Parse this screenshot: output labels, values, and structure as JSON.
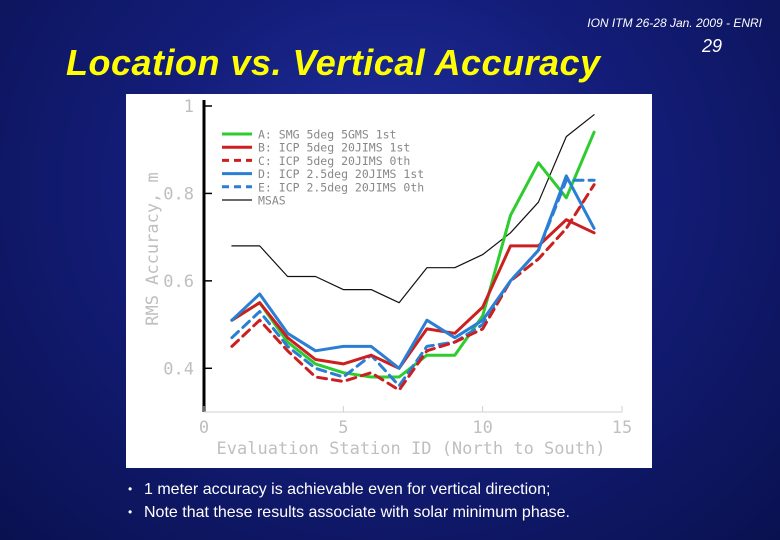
{
  "header": {
    "conference": "ION ITM 26-28 Jan. 2009 - ENRI",
    "page_number": "29"
  },
  "slide": {
    "title": "Location vs. Vertical Accuracy"
  },
  "bullets": [
    "1 meter accuracy is achievable even for vertical direction;",
    "Note that these results associate with solar minimum phase."
  ],
  "colors": {
    "background": "#131d78",
    "title": "#ffff00",
    "green": "#2ecc2e",
    "red": "#cc2020",
    "blue": "#2a7fd4",
    "black": "#111111"
  },
  "chart_data": {
    "type": "line",
    "title": "",
    "xlabel": "Evaluation Station ID (North to South)",
    "ylabel": "RMS Accuracy, m",
    "xlim": [
      0,
      15
    ],
    "ylim": [
      0.3,
      1.0
    ],
    "x_ticks": [
      "0",
      "5",
      "10",
      "15"
    ],
    "y_ticks": [
      "1",
      "0.8",
      "0.6",
      "0.4"
    ],
    "y_tick_values": [
      1.0,
      0.8,
      0.6,
      0.4
    ],
    "x_tick_values": [
      0,
      5,
      10,
      15
    ],
    "legend_position": "top-left",
    "x": [
      1,
      2,
      3,
      4,
      5,
      6,
      7,
      8,
      9,
      10,
      11,
      12,
      13,
      14
    ],
    "series": [
      {
        "key": "A",
        "name": "A: SMG 5deg 5GMS 1st",
        "color": "#2ecc2e",
        "dash": "solid",
        "width": 3,
        "values": [
          0.51,
          0.55,
          0.46,
          0.41,
          0.39,
          0.38,
          0.38,
          0.43,
          0.43,
          0.52,
          0.75,
          0.87,
          0.79,
          0.94
        ]
      },
      {
        "key": "B",
        "name": "B: ICP 5deg 20JIMS 1st",
        "color": "#cc2020",
        "dash": "solid",
        "width": 3,
        "values": [
          0.51,
          0.55,
          0.47,
          0.42,
          0.41,
          0.43,
          0.4,
          0.49,
          0.48,
          0.54,
          0.68,
          0.68,
          0.74,
          0.71
        ]
      },
      {
        "key": "C",
        "name": "C: ICP 5deg 20JIMS 0th",
        "color": "#cc2020",
        "dash": "dashed",
        "width": 3,
        "values": [
          0.45,
          0.51,
          0.44,
          0.38,
          0.37,
          0.39,
          0.35,
          0.44,
          0.46,
          0.49,
          0.6,
          0.65,
          0.72,
          0.82
        ]
      },
      {
        "key": "D",
        "name": "D: ICP 2.5deg 20JIMS 1st",
        "color": "#2a7fd4",
        "dash": "solid",
        "width": 3,
        "values": [
          0.51,
          0.57,
          0.48,
          0.44,
          0.45,
          0.45,
          0.4,
          0.51,
          0.47,
          0.51,
          0.6,
          0.67,
          0.84,
          0.72
        ]
      },
      {
        "key": "E",
        "name": "E: ICP 2.5deg 20JIMS 0th",
        "color": "#2a7fd4",
        "dash": "dashed",
        "width": 3,
        "values": [
          0.47,
          0.53,
          0.45,
          0.4,
          0.38,
          0.43,
          0.36,
          0.45,
          0.46,
          0.5,
          0.6,
          0.67,
          0.83,
          0.83
        ]
      },
      {
        "key": "MSAS",
        "name": "MSAS",
        "color": "#111111",
        "dash": "solid",
        "width": 1.2,
        "values": [
          0.68,
          0.68,
          0.61,
          0.61,
          0.58,
          0.58,
          0.55,
          0.63,
          0.63,
          0.66,
          0.71,
          0.78,
          0.93,
          0.98
        ]
      }
    ]
  }
}
